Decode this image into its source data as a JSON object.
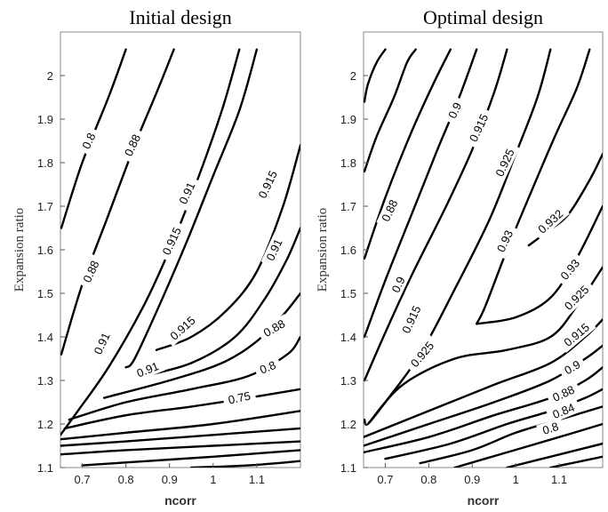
{
  "chart_data": [
    {
      "type": "contour",
      "title": "Initial design",
      "xlabel": "ncorr",
      "ylabel": "Expansion ratio",
      "xlim": [
        0.65,
        1.2
      ],
      "ylim": [
        1.1,
        2.1
      ],
      "xticks": [
        "0.7",
        "0.8",
        "0.9",
        "1",
        "1.1"
      ],
      "yticks": [
        "1.1",
        "1.2",
        "1.3",
        "1.4",
        "1.5",
        "1.6",
        "1.7",
        "1.8",
        "1.9",
        "2"
      ],
      "contours": [
        {
          "level": "0.8",
          "points": [
            [
              0.652,
              1.65
            ],
            [
              0.7,
              1.8
            ],
            [
              0.76,
              1.95
            ],
            [
              0.8,
              2.06
            ]
          ]
        },
        {
          "level": "0.88",
          "points": [
            [
              0.652,
              1.36
            ],
            [
              0.7,
              1.52
            ],
            [
              0.76,
              1.68
            ],
            [
              0.82,
              1.84
            ],
            [
              0.87,
              1.96
            ],
            [
              0.91,
              2.06
            ]
          ]
        },
        {
          "level": "0.91",
          "points": [
            [
              0.65,
              1.175
            ],
            [
              0.69,
              1.23
            ],
            [
              0.76,
              1.33
            ],
            [
              0.84,
              1.47
            ],
            [
              0.9,
              1.6
            ],
            [
              0.96,
              1.75
            ],
            [
              1.02,
              1.92
            ],
            [
              1.06,
              2.06
            ]
          ]
        },
        {
          "level": "0.915",
          "points": [
            [
              0.8,
              1.33
            ],
            [
              0.82,
              1.35
            ],
            [
              0.88,
              1.48
            ],
            [
              0.94,
              1.62
            ],
            [
              1.0,
              1.77
            ],
            [
              1.06,
              1.92
            ],
            [
              1.1,
              2.06
            ]
          ]
        },
        {
          "level": "0.915",
          "points": [
            [
              0.87,
              1.37
            ],
            [
              0.95,
              1.4
            ],
            [
              1.03,
              1.46
            ],
            [
              1.1,
              1.55
            ],
            [
              1.16,
              1.7
            ],
            [
              1.2,
              1.84
            ]
          ]
        },
        {
          "level": "0.91",
          "points": [
            [
              0.84,
              1.31
            ],
            [
              0.95,
              1.34
            ],
            [
              1.05,
              1.4
            ],
            [
              1.12,
              1.49
            ],
            [
              1.17,
              1.58
            ],
            [
              1.2,
              1.65
            ]
          ]
        },
        {
          "level": "0.88",
          "points": [
            [
              0.75,
              1.26
            ],
            [
              0.9,
              1.3
            ],
            [
              1.02,
              1.34
            ],
            [
              1.1,
              1.39
            ],
            [
              1.16,
              1.45
            ],
            [
              1.2,
              1.5
            ]
          ]
        },
        {
          "level": "0.8",
          "points": [
            [
              0.67,
              1.21
            ],
            [
              0.8,
              1.25
            ],
            [
              0.95,
              1.28
            ],
            [
              1.08,
              1.31
            ],
            [
              1.17,
              1.36
            ],
            [
              1.2,
              1.4
            ]
          ]
        },
        {
          "level": "0.75",
          "points": [
            [
              0.66,
              1.19
            ],
            [
              0.8,
              1.22
            ],
            [
              0.95,
              1.24
            ],
            [
              1.08,
              1.26
            ],
            [
              1.2,
              1.28
            ]
          ]
        },
        {
          "level": "",
          "points": [
            [
              0.65,
              1.165
            ],
            [
              0.8,
              1.18
            ],
            [
              1.0,
              1.2
            ],
            [
              1.2,
              1.23
            ]
          ]
        },
        {
          "level": "",
          "points": [
            [
              0.65,
              1.15
            ],
            [
              0.8,
              1.16
            ],
            [
              1.0,
              1.175
            ],
            [
              1.2,
              1.19
            ]
          ]
        },
        {
          "level": "",
          "points": [
            [
              0.65,
              1.13
            ],
            [
              0.8,
              1.14
            ],
            [
              1.0,
              1.15
            ],
            [
              1.2,
              1.16
            ]
          ]
        },
        {
          "level": "",
          "points": [
            [
              0.7,
              1.105
            ],
            [
              0.85,
              1.115
            ],
            [
              1.0,
              1.125
            ],
            [
              1.2,
              1.14
            ]
          ]
        },
        {
          "level": "",
          "points": [
            [
              0.95,
              1.1
            ],
            [
              1.08,
              1.105
            ],
            [
              1.2,
              1.115
            ]
          ]
        }
      ],
      "labels": [
        {
          "text": "0.8",
          "at": [
            0.715,
            1.85
          ],
          "angle": -65
        },
        {
          "text": "0.88",
          "at": [
            0.815,
            1.84
          ],
          "angle": -65
        },
        {
          "text": "0.88",
          "at": [
            0.72,
            1.55
          ],
          "angle": -65
        },
        {
          "text": "0.91",
          "at": [
            0.94,
            1.73
          ],
          "angle": -65
        },
        {
          "text": "0.915",
          "at": [
            0.905,
            1.62
          ],
          "angle": -65
        },
        {
          "text": "0.91",
          "at": [
            0.745,
            1.385
          ],
          "angle": -65
        },
        {
          "text": "0.915",
          "at": [
            0.93,
            1.42
          ],
          "angle": -42
        },
        {
          "text": "0.915",
          "at": [
            1.125,
            1.75
          ],
          "angle": -65
        },
        {
          "text": "0.91",
          "at": [
            1.14,
            1.6
          ],
          "angle": -65
        },
        {
          "text": "0.91",
          "at": [
            0.85,
            1.325
          ],
          "angle": -22
        },
        {
          "text": "0.88",
          "at": [
            1.14,
            1.42
          ],
          "angle": -30
        },
        {
          "text": "0.8",
          "at": [
            1.125,
            1.33
          ],
          "angle": -22
        },
        {
          "text": "0.75",
          "at": [
            1.06,
            1.26
          ],
          "angle": -12
        }
      ]
    },
    {
      "type": "contour",
      "title": "Optimal design",
      "xlabel": "ncorr",
      "ylabel": "Expansion ratio",
      "xlim": [
        0.65,
        1.2
      ],
      "ylim": [
        1.1,
        2.1
      ],
      "xticks": [
        "0.7",
        "0.8",
        "0.9",
        "1",
        "1.1"
      ],
      "yticks": [
        "1.1",
        "1.2",
        "1.3",
        "1.4",
        "1.5",
        "1.6",
        "1.7",
        "1.8",
        "1.9",
        "2"
      ],
      "contours": [
        {
          "level": "",
          "points": [
            [
              0.652,
              1.94
            ],
            [
              0.66,
              1.98
            ],
            [
              0.68,
              2.03
            ],
            [
              0.7,
              2.06
            ]
          ]
        },
        {
          "level": "",
          "points": [
            [
              0.652,
              1.78
            ],
            [
              0.68,
              1.86
            ],
            [
              0.72,
              1.95
            ],
            [
              0.75,
              2.03
            ],
            [
              0.77,
              2.06
            ]
          ]
        },
        {
          "level": "0.88",
          "points": [
            [
              0.652,
              1.58
            ],
            [
              0.7,
              1.72
            ],
            [
              0.76,
              1.87
            ],
            [
              0.81,
              1.98
            ],
            [
              0.85,
              2.06
            ]
          ]
        },
        {
          "level": "0.9",
          "points": [
            [
              0.652,
              1.4
            ],
            [
              0.7,
              1.53
            ],
            [
              0.76,
              1.68
            ],
            [
              0.82,
              1.83
            ],
            [
              0.87,
              1.95
            ],
            [
              0.91,
              2.06
            ]
          ]
        },
        {
          "level": "0.915",
          "points": [
            [
              0.652,
              1.3
            ],
            [
              0.7,
              1.41
            ],
            [
              0.76,
              1.54
            ],
            [
              0.84,
              1.7
            ],
            [
              0.9,
              1.83
            ],
            [
              0.95,
              1.96
            ],
            [
              0.98,
              2.06
            ]
          ]
        },
        {
          "level": "0.925",
          "points": [
            [
              0.652,
              1.21
            ],
            [
              0.66,
              1.2
            ],
            [
              0.7,
              1.25
            ],
            [
              0.78,
              1.36
            ],
            [
              0.86,
              1.51
            ],
            [
              0.94,
              1.67
            ],
            [
              1.0,
              1.82
            ],
            [
              1.05,
              1.95
            ],
            [
              1.08,
              2.06
            ]
          ]
        },
        {
          "level": "0.93",
          "points": [
            [
              0.91,
              1.43
            ],
            [
              0.93,
              1.47
            ],
            [
              0.98,
              1.6
            ],
            [
              1.03,
              1.72
            ],
            [
              1.09,
              1.86
            ],
            [
              1.14,
              1.97
            ],
            [
              1.17,
              2.06
            ]
          ]
        },
        {
          "level": "0.93",
          "points": [
            [
              0.91,
              1.43
            ],
            [
              1.0,
              1.445
            ],
            [
              1.08,
              1.49
            ],
            [
              1.14,
              1.58
            ],
            [
              1.2,
              1.7
            ]
          ]
        },
        {
          "level": "0.932",
          "points": [
            [
              1.03,
              1.61
            ],
            [
              1.07,
              1.64
            ],
            [
              1.12,
              1.68
            ],
            [
              1.17,
              1.76
            ],
            [
              1.2,
              1.82
            ]
          ]
        },
        {
          "level": "0.925",
          "points": [
            [
              0.66,
              1.2
            ],
            [
              0.74,
              1.29
            ],
            [
              0.86,
              1.35
            ],
            [
              0.98,
              1.37
            ],
            [
              1.08,
              1.4
            ],
            [
              1.14,
              1.47
            ],
            [
              1.2,
              1.56
            ]
          ]
        },
        {
          "level": "0.915",
          "points": [
            [
              0.65,
              1.17
            ],
            [
              0.8,
              1.23
            ],
            [
              0.95,
              1.29
            ],
            [
              1.08,
              1.34
            ],
            [
              1.16,
              1.4
            ],
            [
              1.2,
              1.44
            ]
          ]
        },
        {
          "level": "0.9",
          "points": [
            [
              0.65,
              1.15
            ],
            [
              0.8,
              1.2
            ],
            [
              0.95,
              1.25
            ],
            [
              1.08,
              1.3
            ],
            [
              1.16,
              1.35
            ],
            [
              1.2,
              1.38
            ]
          ]
        },
        {
          "level": "0.88",
          "points": [
            [
              0.65,
              1.135
            ],
            [
              0.8,
              1.17
            ],
            [
              0.95,
              1.22
            ],
            [
              1.08,
              1.26
            ],
            [
              1.16,
              1.3
            ],
            [
              1.2,
              1.33
            ]
          ]
        },
        {
          "level": "0.84",
          "points": [
            [
              0.7,
              1.12
            ],
            [
              0.85,
              1.155
            ],
            [
              0.98,
              1.2
            ],
            [
              1.08,
              1.23
            ],
            [
              1.16,
              1.26
            ],
            [
              1.2,
              1.28
            ]
          ]
        },
        {
          "level": "0.8",
          "points": [
            [
              0.78,
              1.11
            ],
            [
              0.9,
              1.14
            ],
            [
              1.0,
              1.18
            ],
            [
              1.1,
              1.21
            ],
            [
              1.2,
              1.24
            ]
          ]
        },
        {
          "level": "",
          "points": [
            [
              0.86,
              1.1
            ],
            [
              0.98,
              1.135
            ],
            [
              1.1,
              1.17
            ],
            [
              1.2,
              1.2
            ]
          ]
        },
        {
          "level": "",
          "points": [
            [
              0.98,
              1.1
            ],
            [
              1.08,
              1.125
            ],
            [
              1.2,
              1.155
            ]
          ]
        },
        {
          "level": "",
          "points": [
            [
              1.08,
              1.1
            ],
            [
              1.2,
              1.125
            ]
          ]
        }
      ],
      "labels": [
        {
          "text": "0.88",
          "at": [
            0.71,
            1.69
          ],
          "angle": -65
        },
        {
          "text": "0.9",
          "at": [
            0.86,
            1.92
          ],
          "angle": -65
        },
        {
          "text": "0.915",
          "at": [
            0.915,
            1.88
          ],
          "angle": -65
        },
        {
          "text": "0.925",
          "at": [
            0.975,
            1.8
          ],
          "angle": -65
        },
        {
          "text": "0.93",
          "at": [
            0.975,
            1.62
          ],
          "angle": -65
        },
        {
          "text": "0.932",
          "at": [
            1.08,
            1.665
          ],
          "angle": -42
        },
        {
          "text": "0.93",
          "at": [
            1.125,
            1.555
          ],
          "angle": -50
        },
        {
          "text": "0.925",
          "at": [
            1.14,
            1.49
          ],
          "angle": -45
        },
        {
          "text": "0.915",
          "at": [
            1.14,
            1.405
          ],
          "angle": -40
        },
        {
          "text": "0.9",
          "at": [
            0.73,
            1.52
          ],
          "angle": -65
        },
        {
          "text": "0.915",
          "at": [
            0.76,
            1.44
          ],
          "angle": -65
        },
        {
          "text": "0.925",
          "at": [
            0.785,
            1.36
          ],
          "angle": -50
        },
        {
          "text": "0.9",
          "at": [
            1.13,
            1.33
          ],
          "angle": -30
        },
        {
          "text": "0.88",
          "at": [
            1.11,
            1.27
          ],
          "angle": -25
        },
        {
          "text": "0.84",
          "at": [
            1.11,
            1.23
          ],
          "angle": -22
        },
        {
          "text": "0.8",
          "at": [
            1.08,
            1.19
          ],
          "angle": -18
        }
      ]
    }
  ]
}
